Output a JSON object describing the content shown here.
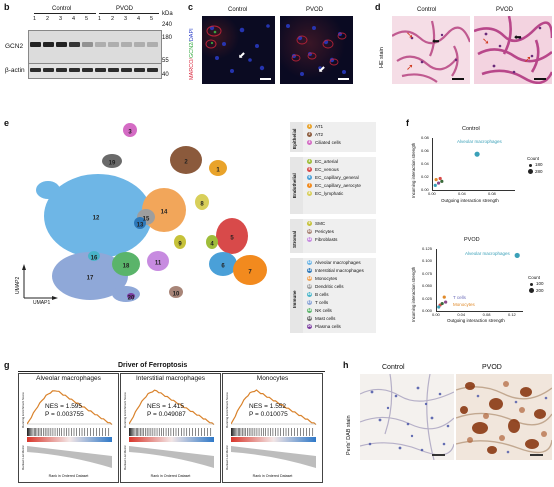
{
  "panels": {
    "b": "b",
    "c": "c",
    "d": "d",
    "e": "e",
    "f": "f",
    "g": "g",
    "h": "h"
  },
  "wb": {
    "control_label": "Control",
    "pvod_label": "PVOD",
    "lanes": [
      "1",
      "2",
      "3",
      "4",
      "5",
      "1",
      "2",
      "3",
      "4",
      "5"
    ],
    "kda_label": "kDa",
    "markers": [
      "240",
      "180",
      "55",
      "40"
    ],
    "protein_gcn2": "GCN2",
    "protein_actin": "β-actin",
    "gcn2_intensity": [
      1,
      1,
      1,
      0.9,
      0.4,
      0.25,
      0.25,
      0.25,
      0.25,
      0.25
    ]
  },
  "if": {
    "control": "Control",
    "pvod": "PVOD",
    "stain_marco": "MARCO/",
    "stain_gcn2": "GCN2/",
    "stain_dapi": "DAPI"
  },
  "he": {
    "control": "Control",
    "pvod": "PVOD",
    "label": "HE stain"
  },
  "umap": {
    "xlabel": "UMAP1",
    "ylabel": "UMAP2",
    "clusters": [
      {
        "id": "1",
        "color": "#e9a32a"
      },
      {
        "id": "2",
        "color": "#8b5a3c"
      },
      {
        "id": "3",
        "color": "#d46bc4"
      },
      {
        "id": "4",
        "color": "#9fbd3a"
      },
      {
        "id": "5",
        "color": "#d84a4a"
      },
      {
        "id": "6",
        "color": "#4aa0d8"
      },
      {
        "id": "7",
        "color": "#f28a1e"
      },
      {
        "id": "8",
        "color": "#d8cf5a"
      },
      {
        "id": "9",
        "color": "#c6c23a"
      },
      {
        "id": "10",
        "color": "#a88578"
      },
      {
        "id": "11",
        "color": "#c78be0"
      },
      {
        "id": "12",
        "color": "#6eb6e6"
      },
      {
        "id": "13",
        "color": "#2e78b8"
      },
      {
        "id": "14",
        "color": "#f2a65a"
      },
      {
        "id": "15",
        "color": "#9e9e9e"
      },
      {
        "id": "16",
        "color": "#48b4c8"
      },
      {
        "id": "17",
        "color": "#8fa8d8"
      },
      {
        "id": "18",
        "color": "#5ab46a"
      },
      {
        "id": "19",
        "color": "#6a6a6a"
      },
      {
        "id": "20",
        "color": "#7a3aa0"
      }
    ]
  },
  "legend": {
    "groups": [
      {
        "name": "Epithelial",
        "items": [
          {
            "n": "1",
            "label": "AT1",
            "color": "#e9a32a"
          },
          {
            "n": "2",
            "label": "AT2",
            "color": "#8b5a3c"
          },
          {
            "n": "3",
            "label": "Ciliated cells",
            "color": "#d46bc4"
          }
        ]
      },
      {
        "name": "Endothelial",
        "items": [
          {
            "n": "4",
            "label": "EC_arterial",
            "color": "#9fbd3a"
          },
          {
            "n": "5",
            "label": "EC_venous",
            "color": "#d84a4a"
          },
          {
            "n": "6",
            "label": "EC_capillary_general",
            "color": "#4aa0d8"
          },
          {
            "n": "7",
            "label": "EC_capillary_aerocyte",
            "color": "#f28a1e"
          },
          {
            "n": "8",
            "label": "EC_lymphatic",
            "color": "#d8cf5a"
          }
        ]
      },
      {
        "name": "Stromal",
        "items": [
          {
            "n": "9",
            "label": "SMC",
            "color": "#c6c23a"
          },
          {
            "n": "10",
            "label": "Pericytes",
            "color": "#a88578"
          },
          {
            "n": "11",
            "label": "Fibroblasts",
            "color": "#c78be0"
          }
        ]
      },
      {
        "name": "Immune",
        "items": [
          {
            "n": "12",
            "label": "Alveolar macrophages",
            "color": "#6eb6e6"
          },
          {
            "n": "13",
            "label": "Interstitial macrophages",
            "color": "#2e78b8"
          },
          {
            "n": "14",
            "label": "Monocytes",
            "color": "#f2a65a"
          },
          {
            "n": "15",
            "label": "Dendritic cells",
            "color": "#9e9e9e"
          },
          {
            "n": "16",
            "label": "B cells",
            "color": "#48b4c8"
          },
          {
            "n": "17",
            "label": "T cells",
            "color": "#8fa8d8"
          },
          {
            "n": "18",
            "label": "NK cells",
            "color": "#5ab46a"
          },
          {
            "n": "19",
            "label": "Mast cells",
            "color": "#6a6a6a"
          },
          {
            "n": "20",
            "label": "Plasma cells",
            "color": "#7a3aa0"
          }
        ]
      }
    ]
  },
  "scatter_control": {
    "title": "Control",
    "ylabel": "Incoming interaction strength",
    "xlabel": "Outgoing interaction strength",
    "yticks": [
      "0.08",
      "0.06",
      "0.04",
      "0.02",
      "0.00"
    ],
    "xticks": [
      "0.00",
      "0.04",
      "0.08"
    ],
    "point_label": "Alveolar macrophages",
    "count_title": "Count",
    "count_items": [
      "180",
      "280"
    ]
  },
  "scatter_pvod": {
    "title": "PVOD",
    "ylabel": "Incoming interaction strength",
    "xlabel": "Outgoing interaction strength",
    "yticks": [
      "0.125",
      "0.100",
      "0.075",
      "0.050",
      "0.025",
      "0.000"
    ],
    "xticks": [
      "0.00",
      "0.04",
      "0.08",
      "0.12"
    ],
    "point_label": "Alveolar macrophages",
    "tcell_label": "T cells",
    "mono_label": "Monocytes",
    "count_title": "Count",
    "count_items": [
      "100",
      "200"
    ]
  },
  "chart_data": [
    {
      "type": "scatter",
      "title": "Control",
      "xlabel": "Outgoing interaction strength",
      "ylabel": "Incoming interaction strength",
      "points": [
        {
          "label": "Alveolar macrophages",
          "x": 0.055,
          "y": 0.062
        },
        {
          "x": 0.005,
          "y": 0.018
        },
        {
          "x": 0.008,
          "y": 0.012
        },
        {
          "x": 0.01,
          "y": 0.02
        },
        {
          "x": 0.012,
          "y": 0.015
        },
        {
          "x": 0.004,
          "y": 0.008
        }
      ]
    },
    {
      "type": "scatter",
      "title": "PVOD",
      "xlabel": "Outgoing interaction strength",
      "ylabel": "Incoming interaction strength",
      "points": [
        {
          "label": "Alveolar macrophages",
          "x": 0.118,
          "y": 0.112
        },
        {
          "label": "T cells",
          "x": 0.012,
          "y": 0.028
        },
        {
          "label": "Monocytes",
          "x": 0.014,
          "y": 0.018
        },
        {
          "x": 0.006,
          "y": 0.012
        },
        {
          "x": 0.009,
          "y": 0.015
        },
        {
          "x": 0.004,
          "y": 0.008
        }
      ]
    }
  ],
  "gsea": {
    "title": "Driver of Ferroptosis",
    "ylabel_top": "Running Enrichment Score",
    "ylabel_bottom": "Ranked List Metric",
    "xlabel": "Rank in Ordered Dataset",
    "panels": [
      {
        "title": "Alveolar macrophages",
        "nes": "NES = 1.595",
        "p": "P = 0.003755"
      },
      {
        "title": "Interstitial macrophages",
        "nes": "NES = 1.415",
        "p": "P = 0.049087"
      },
      {
        "title": "Monocytes",
        "nes": "NES = 1.552",
        "p": "P = 0.010075"
      }
    ]
  },
  "perls": {
    "control": "Control",
    "pvod": "PVOD",
    "label": "Perls' DAB stain"
  }
}
